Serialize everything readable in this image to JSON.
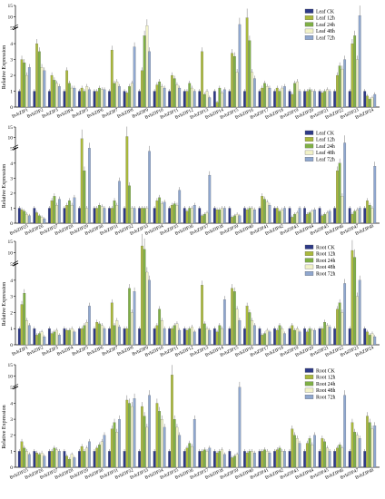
{
  "figure": {
    "legend_series_leaf": [
      "Leaf CK",
      "Leaf 12h",
      "Leaf 24h",
      "Leaf 48h",
      "Leaf 72h"
    ],
    "legend_series_root": [
      "Root CK",
      "Root 12h",
      "Root 24h",
      "Root 48h",
      "Root 72h"
    ],
    "colors": [
      "#2e3a87",
      "#aab93c",
      "#7fb045",
      "#f2f2c8",
      "#8fa7cf"
    ]
  },
  "chart_data": [
    {
      "type": "bar",
      "ylabel": "Relative Expression",
      "y_axis_break": true,
      "ylim": [
        0,
        15
      ],
      "yticks": [
        0,
        1,
        2,
        3,
        4,
        5,
        10,
        15
      ],
      "grid": false,
      "legend": "top-right",
      "categories": [
        "BvbZIP1",
        "BvbZIP2",
        "BvbZIP3",
        "BvbZIP4",
        "BvbZIP5",
        "BvbZIP6",
        "BvbZIP7",
        "BvbZIP8",
        "BvbZIP9",
        "BvbZIP10",
        "BvbZIP11",
        "BvbZIP12",
        "BvbZIP13",
        "BvbZIP14",
        "BvbZIP15",
        "BvbZIP16",
        "BvbZIP17",
        "BvbZIP18",
        "BvbZIP19",
        "BvbZIP20",
        "BvbZIP21",
        "BvbZIP22",
        "BvbZIP23",
        "BvbZIP24"
      ],
      "series": [
        {
          "name": "Leaf CK",
          "values": [
            1,
            1,
            1,
            1,
            1,
            1,
            1,
            1,
            1,
            1,
            1,
            1,
            1,
            1,
            1,
            1,
            1,
            1,
            1,
            1,
            1,
            1,
            1,
            1
          ]
        },
        {
          "name": "Leaf 12h",
          "values": [
            3.0,
            4.0,
            2.0,
            2.3,
            1.2,
            1.0,
            3.6,
            0.9,
            2.3,
            1.4,
            2.0,
            1.0,
            3.5,
            0.3,
            3.4,
            9.5,
            1.2,
            1.2,
            0.8,
            1.0,
            0.9,
            2.0,
            4.0,
            0.7
          ]
        },
        {
          "name": "Leaf 24h",
          "values": [
            2.8,
            3.5,
            1.7,
            1.5,
            1.0,
            1.2,
            1.5,
            1.3,
            4.5,
            1.6,
            1.8,
            1.5,
            0.8,
            1.2,
            3.2,
            4.2,
            1.5,
            1.0,
            1.5,
            1.1,
            1.0,
            2.6,
            4.5,
            0.5
          ]
        },
        {
          "name": "Leaf 48h",
          "values": [
            2.0,
            2.5,
            1.5,
            1.2,
            1.3,
            1.1,
            1.6,
            1.5,
            6.0,
            1.3,
            1.4,
            1.2,
            1.0,
            0.9,
            2.2,
            2.2,
            1.3,
            1.2,
            1.6,
            1.0,
            1.1,
            2.4,
            3.0,
            0.6
          ]
        },
        {
          "name": "Leaf 72h",
          "values": [
            2.5,
            2.3,
            1.3,
            1.2,
            1.1,
            1.1,
            1.3,
            3.8,
            3.5,
            1.2,
            1.2,
            1.0,
            0.6,
            1.1,
            6.5,
            1.8,
            1.2,
            1.3,
            1.0,
            1.0,
            1.0,
            3.0,
            10.5,
            0.8
          ]
        }
      ]
    },
    {
      "type": "bar",
      "ylabel": "Relative Expression",
      "y_axis_break": true,
      "ylim": [
        0,
        15
      ],
      "yticks": [
        0,
        1,
        2,
        3,
        4,
        5,
        10,
        15
      ],
      "grid": false,
      "legend": "top-right",
      "categories": [
        "BvbZIP25",
        "BvbZIP26",
        "BvbZIP27",
        "BvbZIP28",
        "BvbZIP29",
        "BvbZIP30",
        "BvbZIP31",
        "BvbZIP32",
        "BvbZIP33",
        "BvbZIP34",
        "BvbZIP35",
        "BvbZIP36",
        "BvbZIP37",
        "BvbZIP38",
        "BvbZIP39",
        "BvbZIP40",
        "BvbZIP41",
        "BvbZIP42",
        "BvbZIP43",
        "BvbZIP44",
        "BvbZIP45",
        "BvbZIP46",
        "BvbZIP47",
        "BvbZIP48"
      ],
      "series": [
        {
          "name": "Leaf CK",
          "values": [
            1,
            1,
            1,
            1,
            1,
            1,
            1,
            1,
            1,
            1,
            1,
            1,
            1,
            1,
            1,
            1,
            1,
            1,
            1,
            1,
            1,
            1,
            1,
            1
          ]
        },
        {
          "name": "Leaf 12h",
          "values": [
            0.9,
            0.7,
            1.5,
            1.2,
            9.5,
            1.0,
            1.0,
            10.5,
            1.0,
            1.5,
            1.2,
            0.8,
            0.5,
            0.9,
            0.4,
            0.9,
            1.8,
            1.0,
            0.4,
            0.6,
            0.5,
            3.5,
            0.6,
            1.5
          ]
        },
        {
          "name": "Leaf 24h",
          "values": [
            0.8,
            0.5,
            1.8,
            1.5,
            3.5,
            1.2,
            1.5,
            2.5,
            1.0,
            1.7,
            1.3,
            1.0,
            0.6,
            0.9,
            0.5,
            1.0,
            1.6,
            0.8,
            0.6,
            0.7,
            0.6,
            4.0,
            0.8,
            1.2
          ]
        },
        {
          "name": "Leaf 48h",
          "values": [
            0.6,
            0.4,
            1.2,
            1.2,
            1.0,
            1.1,
            1.2,
            1.0,
            1.0,
            1.3,
            1.2,
            1.0,
            0.7,
            1.0,
            0.6,
            1.0,
            1.4,
            0.9,
            0.7,
            0.8,
            0.7,
            1.8,
            0.9,
            1.0
          ]
        },
        {
          "name": "Leaf 72h",
          "values": [
            0.5,
            0.3,
            1.6,
            1.7,
            5.0,
            1.0,
            2.8,
            1.0,
            4.8,
            1.4,
            2.2,
            1.2,
            3.2,
            1.0,
            0.5,
            0.9,
            1.2,
            1.0,
            1.0,
            0.9,
            0.8,
            7.5,
            1.0,
            3.8
          ]
        }
      ]
    },
    {
      "type": "bar",
      "ylabel": "Relative Expression",
      "y_axis_break": true,
      "ylim": [
        0,
        15
      ],
      "yticks": [
        0,
        1,
        2,
        3,
        4,
        5,
        10,
        15
      ],
      "grid": false,
      "legend": "top-right",
      "categories": [
        "BvbZIP1",
        "BvbZIP2",
        "BvbZIP3",
        "BvbZIP4",
        "BvbZIP5",
        "BvbZIP6",
        "BvbZIP7",
        "BvbZIP8",
        "BvbZIP9",
        "BvbZIP10",
        "BvbZIP11",
        "BvbZIP12",
        "BvbZIP13",
        "BvbZIP14",
        "BvbZIP15",
        "BvbZIP16",
        "BvbZIP17",
        "BvbZIP18",
        "BvbZIP19",
        "BvbZIP20",
        "BvbZIP21",
        "BvbZIP22",
        "BvbZIP23",
        "BvbZIP24"
      ],
      "series": [
        {
          "name": "Root CK",
          "values": [
            1,
            1,
            1,
            1,
            1,
            1,
            1,
            1,
            1,
            1,
            1,
            1,
            1,
            1,
            1,
            1,
            1,
            1,
            1,
            1,
            1,
            1,
            1,
            1
          ]
        },
        {
          "name": "Root 12h",
          "values": [
            2.5,
            0.6,
            0.7,
            0.9,
            1.0,
            1.4,
            2.6,
            1.0,
            13.0,
            1.2,
            1.0,
            0.9,
            3.7,
            0.8,
            3.5,
            2.4,
            0.6,
            0.9,
            1.2,
            0.8,
            1.0,
            2.2,
            11.0,
            0.8
          ]
        },
        {
          "name": "Root 24h",
          "values": [
            3.2,
            0.7,
            0.8,
            0.9,
            1.2,
            1.3,
            1.2,
            3.5,
            11.5,
            2.2,
            1.2,
            1.0,
            1.3,
            1.2,
            3.3,
            2.0,
            0.7,
            1.2,
            0.9,
            1.0,
            1.4,
            2.6,
            8.0,
            0.6
          ]
        },
        {
          "name": "Root 48h",
          "values": [
            1.5,
            0.8,
            0.9,
            1.0,
            1.4,
            1.2,
            1.5,
            2.0,
            4.5,
            1.5,
            1.3,
            1.1,
            1.0,
            1.0,
            2.2,
            1.5,
            0.9,
            1.0,
            1.0,
            0.9,
            1.2,
            2.0,
            3.0,
            0.7
          ]
        },
        {
          "name": "Root 72h",
          "values": [
            1.2,
            0.5,
            0.6,
            0.8,
            2.4,
            1.0,
            1.1,
            3.3,
            4.0,
            1.0,
            0.9,
            0.8,
            0.9,
            2.8,
            1.5,
            1.2,
            0.8,
            0.7,
            0.8,
            0.9,
            1.1,
            3.8,
            4.0,
            0.5
          ]
        }
      ]
    },
    {
      "type": "bar",
      "ylabel": "Relative Expression",
      "y_axis_break": true,
      "ylim": [
        0,
        15
      ],
      "yticks": [
        0,
        1,
        2,
        3,
        4,
        5,
        10,
        15
      ],
      "grid": false,
      "legend": "top-right",
      "categories": [
        "BvbZIP25",
        "BvbZIP26",
        "BvbZIP27",
        "BvbZIP28",
        "BvbZIP29",
        "BvbZIP30",
        "BvbZIP31",
        "BvbZIP32",
        "BvbZIP33",
        "BvbZIP34",
        "BvbZIP35",
        "BvbZIP36",
        "BvbZIP37",
        "BvbZIP38",
        "BvbZIP39",
        "BvbZIP40",
        "BvbZIP41",
        "BvbZIP42",
        "BvbZIP43",
        "BvbZIP44",
        "BvbZIP45",
        "BvbZIP46",
        "BvbZIP47",
        "BvbZIP48"
      ],
      "series": [
        {
          "name": "Root CK",
          "values": [
            1,
            1,
            1,
            1,
            1,
            1,
            1,
            1,
            1,
            1,
            1,
            1,
            1,
            1,
            1,
            1,
            1,
            1,
            1,
            1,
            1,
            1,
            1,
            1
          ]
        },
        {
          "name": "Root 12h",
          "values": [
            1.6,
            0.9,
            1.0,
            0.7,
            1.3,
            1.2,
            2.4,
            4.2,
            3.8,
            4.0,
            10.5,
            1.2,
            1.0,
            0.9,
            0.6,
            0.9,
            1.0,
            1.1,
            2.4,
            1.5,
            1.8,
            1.2,
            2.8,
            3.2
          ]
        },
        {
          "name": "Root 24h",
          "values": [
            1.2,
            0.8,
            1.2,
            0.5,
            1.0,
            1.4,
            2.8,
            4.0,
            3.2,
            3.5,
            3.0,
            1.5,
            1.1,
            1.0,
            0.7,
            1.0,
            1.1,
            1.2,
            2.0,
            1.8,
            1.6,
            1.4,
            2.2,
            2.8
          ]
        },
        {
          "name": "Root 48h",
          "values": [
            1.0,
            0.9,
            1.1,
            0.8,
            1.2,
            1.6,
            2.2,
            3.8,
            2.5,
            3.0,
            2.5,
            1.3,
            1.0,
            1.1,
            0.8,
            1.0,
            1.0,
            1.0,
            1.8,
            1.4,
            1.2,
            1.2,
            2.0,
            2.4
          ]
        },
        {
          "name": "Root 72h",
          "values": [
            0.8,
            0.7,
            1.0,
            0.6,
            1.6,
            2.0,
            3.0,
            4.3,
            4.5,
            2.5,
            2.0,
            3.0,
            1.2,
            0.8,
            5.0,
            0.9,
            0.9,
            1.0,
            1.5,
            2.0,
            1.0,
            4.5,
            1.8,
            2.6
          ]
        }
      ]
    }
  ]
}
